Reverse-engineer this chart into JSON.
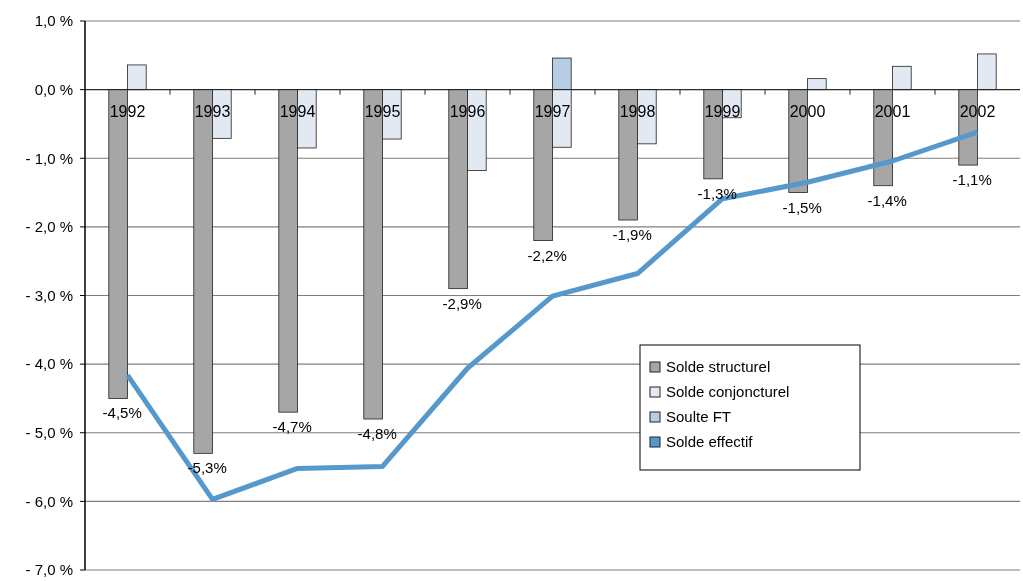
{
  "chart_data": {
    "type": "bar",
    "categories": [
      "1992",
      "1993",
      "1994",
      "1995",
      "1996",
      "1997",
      "1998",
      "1999",
      "2000",
      "2001",
      "2002"
    ],
    "series": [
      {
        "name": "Solde structurel",
        "color": "#a6a6a6",
        "values": [
          -4.5,
          -5.3,
          -4.7,
          -4.8,
          -2.9,
          -2.2,
          -1.9,
          -1.3,
          -1.5,
          -1.4,
          -1.1
        ],
        "value_labels": [
          "-4,5%",
          "-5,3%",
          "-4,7%",
          "-4,8%",
          "-2,9%",
          "-2,2%",
          "-1,9%",
          "-1,3%",
          "-1,5%",
          "-1,4%",
          "-1,1%"
        ]
      },
      {
        "name": "Solde conjoncturel",
        "color": "#e3e9f3",
        "values": [
          0.36,
          -0.71,
          -0.85,
          -0.72,
          -1.18,
          -0.84,
          -0.79,
          -0.41,
          0.16,
          0.34,
          0.52
        ]
      },
      {
        "name": "Soulte FT",
        "color": "#b7cde6",
        "values": [
          null,
          null,
          null,
          null,
          null,
          0.46,
          null,
          null,
          null,
          null,
          null
        ]
      },
      {
        "name": "Solde effectif",
        "type": "line",
        "color": "#5599cc",
        "values": [
          -4.16,
          -5.97,
          -5.52,
          -5.49,
          -4.06,
          -3.01,
          -2.68,
          -1.59,
          -1.35,
          -1.04,
          -0.62
        ]
      }
    ],
    "ylim": [
      -7,
      1
    ],
    "yticks": [
      {
        "value": 1,
        "label": "1,0 %"
      },
      {
        "value": 0,
        "label": "0,0 %"
      },
      {
        "value": -1,
        "label": "- 1,0 %"
      },
      {
        "value": -2,
        "label": "- 2,0 %"
      },
      {
        "value": -3,
        "label": "- 3,0 %"
      },
      {
        "value": -4,
        "label": "- 4,0 %"
      },
      {
        "value": -5,
        "label": "- 5,0 %"
      },
      {
        "value": -6,
        "label": "- 6,0 %"
      },
      {
        "value": -7,
        "label": "- 7,0 %"
      }
    ],
    "grid": "y",
    "legend": "right"
  }
}
